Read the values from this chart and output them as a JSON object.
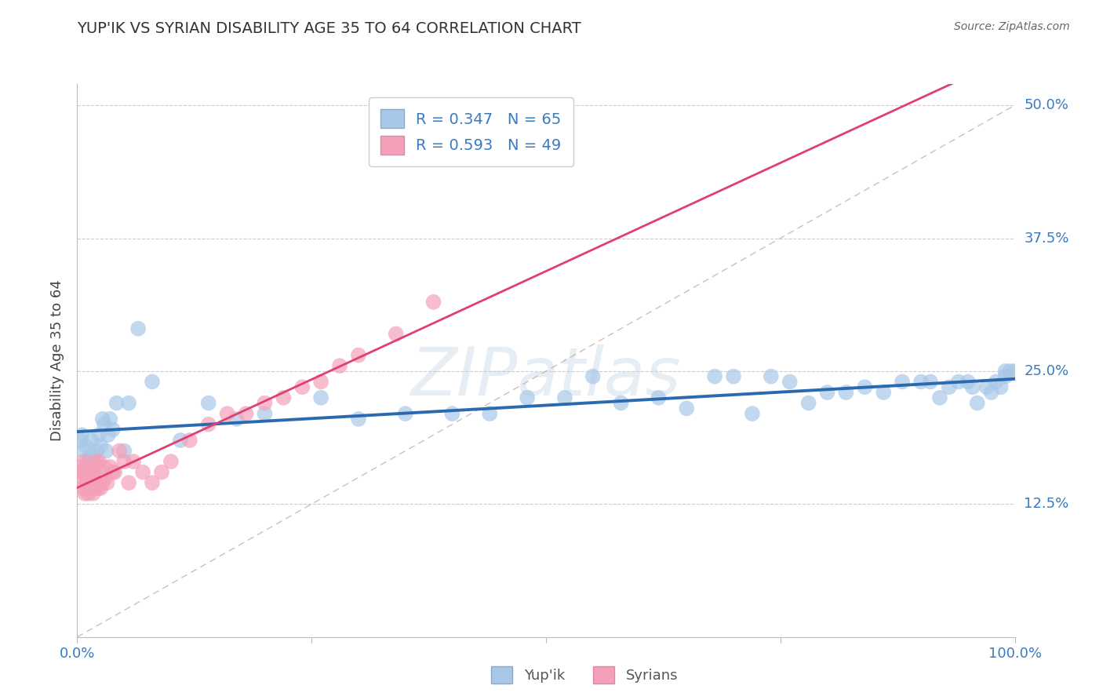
{
  "title": "YUP'IK VS SYRIAN DISABILITY AGE 35 TO 64 CORRELATION CHART",
  "source_text": "Source: ZipAtlas.com",
  "ylabel": "Disability Age 35 to 64",
  "xlim": [
    0,
    100
  ],
  "ylim": [
    0,
    52
  ],
  "yticks": [
    12.5,
    25.0,
    37.5,
    50.0
  ],
  "xticks": [
    0,
    25,
    50,
    75,
    100
  ],
  "yupik_color": "#a8c8e8",
  "syrian_color": "#f4a0b8",
  "yupik_line_color": "#2a6ab0",
  "syrian_line_color": "#e04070",
  "r_yupik": 0.347,
  "n_yupik": 65,
  "r_syrian": 0.593,
  "n_syrian": 49,
  "yupik_x": [
    0.3,
    0.5,
    0.7,
    0.9,
    1.1,
    1.3,
    1.5,
    1.7,
    1.9,
    2.1,
    2.3,
    2.5,
    2.7,
    2.9,
    3.1,
    3.3,
    3.5,
    3.8,
    4.2,
    5.0,
    5.5,
    6.5,
    8.0,
    11.0,
    14.0,
    17.0,
    20.0,
    26.0,
    30.0,
    35.0,
    40.0,
    44.0,
    48.0,
    52.0,
    55.0,
    58.0,
    62.0,
    65.0,
    68.0,
    70.0,
    72.0,
    74.0,
    76.0,
    78.0,
    80.0,
    82.0,
    84.0,
    86.0,
    88.0,
    90.0,
    91.0,
    92.0,
    93.0,
    94.0,
    95.0,
    95.5,
    96.0,
    97.0,
    97.5,
    98.0,
    98.5,
    99.0,
    99.0,
    99.5,
    100.0
  ],
  "yupik_y": [
    18.5,
    19.0,
    17.5,
    18.0,
    16.5,
    17.0,
    18.5,
    17.0,
    16.0,
    17.5,
    19.0,
    18.0,
    20.5,
    20.0,
    17.5,
    19.0,
    20.5,
    19.5,
    22.0,
    17.5,
    22.0,
    29.0,
    24.0,
    18.5,
    22.0,
    20.5,
    21.0,
    22.5,
    20.5,
    21.0,
    21.0,
    21.0,
    22.5,
    22.5,
    24.5,
    22.0,
    22.5,
    21.5,
    24.5,
    24.5,
    21.0,
    24.5,
    24.0,
    22.0,
    23.0,
    23.0,
    23.5,
    23.0,
    24.0,
    24.0,
    24.0,
    22.5,
    23.5,
    24.0,
    24.0,
    23.5,
    22.0,
    23.5,
    23.0,
    24.0,
    23.5,
    24.5,
    25.0,
    25.0,
    25.0
  ],
  "syrian_x": [
    0.2,
    0.3,
    0.5,
    0.6,
    0.7,
    0.8,
    0.9,
    1.0,
    1.1,
    1.2,
    1.3,
    1.4,
    1.5,
    1.6,
    1.7,
    1.8,
    1.9,
    2.0,
    2.1,
    2.2,
    2.3,
    2.5,
    2.7,
    2.8,
    3.0,
    3.2,
    3.5,
    3.8,
    4.0,
    4.5,
    5.0,
    5.5,
    6.0,
    7.0,
    8.0,
    9.0,
    10.0,
    12.0,
    14.0,
    16.0,
    18.0,
    20.0,
    22.0,
    24.0,
    26.0,
    28.0,
    30.0,
    34.0,
    38.0
  ],
  "syrian_y": [
    15.0,
    16.0,
    15.5,
    14.0,
    16.5,
    13.5,
    15.0,
    16.0,
    14.5,
    13.5,
    15.5,
    15.0,
    14.0,
    15.5,
    13.5,
    15.5,
    14.0,
    16.5,
    14.5,
    14.0,
    16.5,
    14.0,
    14.5,
    16.0,
    15.0,
    14.5,
    16.0,
    15.5,
    15.5,
    17.5,
    16.5,
    14.5,
    16.5,
    15.5,
    14.5,
    15.5,
    16.5,
    18.5,
    20.0,
    21.0,
    21.0,
    22.0,
    22.5,
    23.5,
    24.0,
    25.5,
    26.5,
    28.5,
    31.5
  ]
}
